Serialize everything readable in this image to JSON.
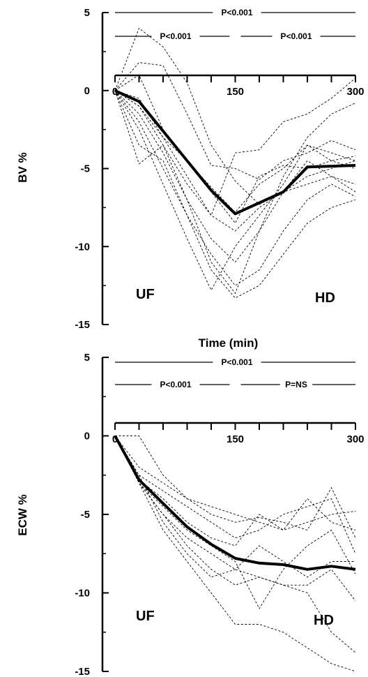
{
  "chart_data": [
    {
      "type": "line",
      "ylabel": "BV %",
      "xlabel": "Time (min)",
      "xlim": [
        0,
        300
      ],
      "ylim": [
        -15,
        5
      ],
      "x_ticks": [
        "0",
        "150",
        "300"
      ],
      "y_ticks": [
        "5",
        "0",
        "-5",
        "-10",
        "-15"
      ],
      "annotations": {
        "overall": "P<0.001",
        "left": "P<0.001",
        "right": "P<0.001",
        "phase_left": "UF",
        "phase_right": "HD"
      },
      "mean": {
        "x": [
          0,
          30,
          120,
          150,
          210,
          240,
          300
        ],
        "y": [
          0,
          -0.7,
          -6.4,
          -7.9,
          -6.5,
          -4.9,
          -4.8
        ]
      },
      "individual": [
        {
          "x": [
            0,
            30,
            60,
            90,
            120,
            150,
            180,
            210,
            240,
            270,
            300
          ],
          "y": [
            0,
            4,
            2.8,
            0.5,
            -3.5,
            -5.8,
            -7.3,
            -6.5,
            -5.5,
            -5,
            -4.5
          ]
        },
        {
          "x": [
            0,
            30,
            60,
            90,
            120,
            150,
            180,
            210,
            240,
            270,
            300
          ],
          "y": [
            0,
            1.8,
            1.6,
            -1.5,
            -4.8,
            -5,
            -5.7,
            -4.5,
            -4,
            -3.2,
            -3.8
          ]
        },
        {
          "x": [
            0,
            30,
            60,
            90,
            120,
            150,
            180,
            210,
            240,
            270,
            300
          ],
          "y": [
            0,
            1,
            -2.5,
            -4.5,
            -6.2,
            -7.8,
            -6,
            -5,
            -3.5,
            -4,
            -4.5
          ]
        },
        {
          "x": [
            0,
            30,
            60,
            90,
            120,
            150,
            180,
            210,
            240,
            270,
            300
          ],
          "y": [
            0,
            -0.5,
            -3,
            -4.5,
            -6.5,
            -8.5,
            -5.5,
            -4.8,
            -5,
            -4.5,
            -5
          ]
        },
        {
          "x": [
            0,
            30,
            60,
            90,
            120,
            150,
            180,
            210,
            240,
            270,
            300
          ],
          "y": [
            0,
            -1,
            -3.5,
            -6,
            -8,
            -9,
            -7.5,
            -6.5,
            -6,
            -5.5,
            -6
          ]
        },
        {
          "x": [
            0,
            30,
            60,
            90,
            120,
            150,
            180,
            210,
            240,
            270,
            300
          ],
          "y": [
            0,
            -1.5,
            -4,
            -7,
            -9.5,
            -11,
            -9,
            -6.5,
            -4.5,
            -5.5,
            -6.5
          ]
        },
        {
          "x": [
            0,
            30,
            60,
            90,
            120,
            150,
            180,
            210,
            240,
            270,
            300
          ],
          "y": [
            0,
            -2,
            -5,
            -8,
            -10.5,
            -12.5,
            -11.5,
            -9,
            -7,
            -6,
            -6.8
          ]
        },
        {
          "x": [
            0,
            30,
            60,
            90,
            120,
            150,
            180,
            210,
            240,
            270,
            300
          ],
          "y": [
            0,
            -2.5,
            -6,
            -9.5,
            -12.8,
            -10,
            -8,
            -6,
            -3.5,
            -4.5,
            -4.2
          ]
        },
        {
          "x": [
            0,
            30,
            60,
            90,
            120,
            150,
            180,
            210,
            240,
            270,
            300
          ],
          "y": [
            0,
            -3.5,
            -4.5,
            -8,
            -11.5,
            -13.3,
            -12.5,
            -10.5,
            -8.5,
            -7.5,
            -7
          ]
        },
        {
          "x": [
            0,
            30,
            60,
            90,
            120,
            150,
            180,
            210,
            240,
            270,
            300
          ],
          "y": [
            0,
            -4.7,
            -3.5,
            -7,
            -11,
            -13,
            -9,
            -5.5,
            -3,
            -1.5,
            -0.8
          ]
        },
        {
          "x": [
            0,
            30,
            60,
            90,
            120,
            150,
            180,
            210,
            240,
            270,
            300
          ],
          "y": [
            0,
            -1,
            -3,
            -5.5,
            -8,
            -4,
            -3.8,
            -2,
            -1.5,
            -0.5,
            0.8
          ]
        }
      ]
    },
    {
      "type": "line",
      "ylabel": "ECW %",
      "xlabel": "",
      "xlim": [
        0,
        300
      ],
      "ylim": [
        -15,
        5
      ],
      "x_ticks": [
        "0",
        "150",
        "300"
      ],
      "y_ticks": [
        "5",
        "0",
        "-5",
        "-10",
        "-15"
      ],
      "annotations": {
        "overall": "P<0.001",
        "left": "P<0.001",
        "right": "P=NS",
        "phase_left": "UF",
        "phase_right": "HD"
      },
      "mean": {
        "x": [
          0,
          30,
          60,
          90,
          120,
          150,
          180,
          210,
          240,
          270,
          300
        ],
        "y": [
          0,
          -2.8,
          -4.3,
          -5.8,
          -6.9,
          -7.8,
          -8.1,
          -8.2,
          -8.5,
          -8.3,
          -8.5
        ]
      },
      "individual": [
        {
          "x": [
            0,
            30,
            60,
            90,
            120,
            150,
            180,
            210,
            240,
            270,
            300
          ],
          "y": [
            0,
            0,
            -2.5,
            -4,
            -5,
            -5.5,
            -5.2,
            -5.5,
            -6,
            -3.3,
            -6.5
          ]
        },
        {
          "x": [
            0,
            30,
            60,
            90,
            120,
            150,
            180,
            210,
            240,
            270,
            300
          ],
          "y": [
            0,
            -2,
            -3,
            -4,
            -4.5,
            -5,
            -5.5,
            -6,
            -5.5,
            -5,
            -4.8
          ]
        },
        {
          "x": [
            0,
            30,
            60,
            90,
            120,
            150,
            180,
            210,
            240,
            270,
            300
          ],
          "y": [
            0,
            -2.5,
            -3.5,
            -4.5,
            -5.5,
            -6.5,
            -6,
            -5,
            -4.5,
            -4,
            -7.5
          ]
        },
        {
          "x": [
            0,
            30,
            60,
            90,
            120,
            150,
            180,
            210,
            240,
            270,
            300
          ],
          "y": [
            0,
            -2.8,
            -4,
            -5.5,
            -6.5,
            -7,
            -5,
            -6,
            -4,
            -5.5,
            -6
          ]
        },
        {
          "x": [
            0,
            30,
            60,
            90,
            120,
            150,
            180,
            210,
            240,
            270,
            300
          ],
          "y": [
            0,
            -3,
            -4.5,
            -6,
            -7,
            -8,
            -11,
            -8.5,
            -7,
            -6,
            -8.8
          ]
        },
        {
          "x": [
            0,
            30,
            60,
            90,
            120,
            150,
            180,
            210,
            240,
            270,
            300
          ],
          "y": [
            0,
            -3,
            -5,
            -6.5,
            -7.5,
            -8.5,
            -9,
            -9.5,
            -9.5,
            -8.5,
            -10.5
          ]
        },
        {
          "x": [
            0,
            30,
            60,
            90,
            120,
            150,
            180,
            210,
            240,
            270,
            300
          ],
          "y": [
            0,
            -2.5,
            -5.5,
            -7.5,
            -9,
            -8.5,
            -7,
            -8,
            -9,
            -8,
            -8
          ]
        },
        {
          "x": [
            0,
            30,
            60,
            90,
            120,
            150,
            180,
            210,
            240,
            270,
            300
          ],
          "y": [
            0,
            -3,
            -5,
            -7,
            -8.5,
            -9.5,
            -9,
            -9.5,
            -10,
            -12.5,
            -13.8
          ]
        },
        {
          "x": [
            0,
            30,
            60,
            90,
            120,
            150,
            180,
            210,
            240,
            270,
            300
          ],
          "y": [
            0,
            -3,
            -6,
            -8,
            -10,
            -12,
            -12,
            -12.5,
            -13.5,
            -14.5,
            -15
          ]
        }
      ]
    }
  ]
}
